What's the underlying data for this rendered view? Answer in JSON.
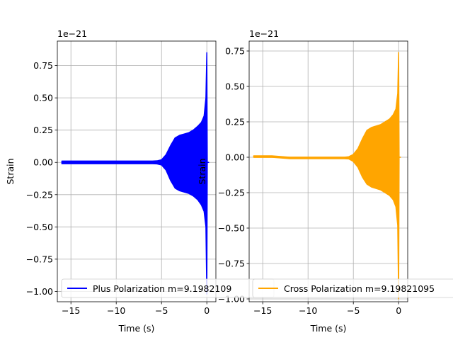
{
  "chart_data": [
    {
      "type": "line",
      "title": "",
      "xlabel": "Time (s)",
      "ylabel": "Strain",
      "offset_text": "1e−21",
      "xlim": [
        -16.5,
        1.0
      ],
      "ylim": [
        -1.08,
        0.94
      ],
      "grid": true,
      "xticks": [
        -15,
        -10,
        -5,
        0
      ],
      "xtick_labels": [
        "−15",
        "−10",
        "−5",
        "0"
      ],
      "yticks": [
        -1.0,
        -0.75,
        -0.5,
        -0.25,
        0.0,
        0.25,
        0.5,
        0.75
      ],
      "ytick_labels": [
        "−1.00",
        "−0.75",
        "−0.50",
        "−0.25",
        "0.00",
        "0.25",
        "0.50",
        "0.75"
      ],
      "legend_position": "bottom",
      "series": [
        {
          "name": "Plus Polarization m=9.1982109",
          "color": "#0000ff",
          "x": [
            -16.0,
            -14.0,
            -12.0,
            -10.0,
            -8.0,
            -6.0,
            -5.5,
            -5.0,
            -4.5,
            -4.0,
            -3.5,
            -3.0,
            -2.5,
            -2.0,
            -1.5,
            -1.0,
            -0.6,
            -0.3,
            -0.1,
            0.0,
            0.05,
            0.2
          ],
          "envelope_upper": [
            0.01,
            0.01,
            0.01,
            0.01,
            0.01,
            0.01,
            0.012,
            0.02,
            0.06,
            0.13,
            0.19,
            0.21,
            0.22,
            0.23,
            0.25,
            0.28,
            0.31,
            0.36,
            0.5,
            0.85,
            0.0,
            0.0
          ],
          "envelope_lower": [
            -0.01,
            -0.01,
            -0.01,
            -0.01,
            -0.01,
            -0.01,
            -0.012,
            -0.02,
            -0.06,
            -0.14,
            -0.2,
            -0.22,
            -0.23,
            -0.24,
            -0.26,
            -0.29,
            -0.33,
            -0.38,
            -0.5,
            -1.02,
            0.0,
            0.0
          ]
        }
      ]
    },
    {
      "type": "line",
      "title": "",
      "xlabel": "Time (s)",
      "ylabel": "Strain",
      "offset_text": "1e−21",
      "xlim": [
        -16.5,
        1.0
      ],
      "ylim": [
        -1.02,
        0.82
      ],
      "grid": true,
      "xticks": [
        -15,
        -10,
        -5,
        0
      ],
      "xtick_labels": [
        "−15",
        "−10",
        "−5",
        "0"
      ],
      "yticks": [
        -1.0,
        -0.75,
        -0.5,
        -0.25,
        0.0,
        0.25,
        0.5,
        0.75
      ],
      "ytick_labels": [
        "−1.00",
        "−0.75",
        "−0.50",
        "−0.25",
        "0.00",
        "0.25",
        "0.50",
        "0.75"
      ],
      "legend_position": "bottom",
      "series": [
        {
          "name": "Cross Polarization m=9.19821095",
          "color": "#ffa500",
          "x": [
            -16.0,
            -14.0,
            -12.0,
            -10.0,
            -8.0,
            -6.0,
            -5.5,
            -5.0,
            -4.5,
            -4.0,
            -3.5,
            -3.0,
            -2.5,
            -2.0,
            -1.5,
            -1.0,
            -0.6,
            -0.3,
            -0.1,
            0.0,
            0.05,
            0.2
          ],
          "envelope_upper": [
            0.01,
            0.01,
            0.0,
            0.0,
            0.0,
            0.0,
            0.004,
            0.02,
            0.06,
            0.13,
            0.19,
            0.21,
            0.22,
            0.23,
            0.25,
            0.27,
            0.3,
            0.34,
            0.45,
            0.74,
            0.0,
            0.0
          ],
          "envelope_lower": [
            0.0,
            0.0,
            -0.01,
            -0.01,
            -0.01,
            -0.01,
            -0.012,
            -0.03,
            -0.07,
            -0.14,
            -0.19,
            -0.21,
            -0.22,
            -0.23,
            -0.25,
            -0.27,
            -0.3,
            -0.35,
            -0.48,
            -1.0,
            0.0,
            0.0
          ]
        }
      ]
    }
  ]
}
